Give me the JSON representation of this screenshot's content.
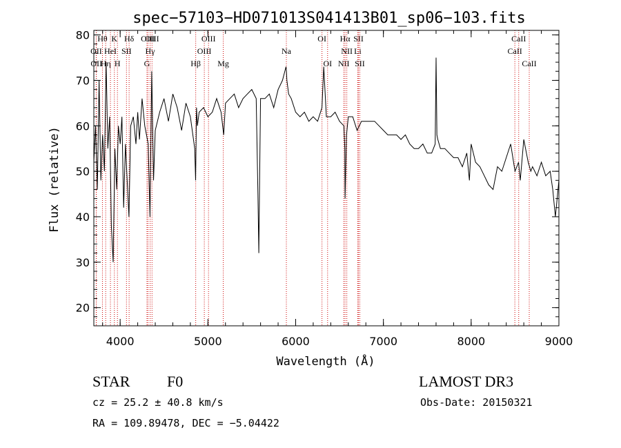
{
  "chart_data": {
    "type": "line",
    "title": "spec−57103−HD071013S041413B01_sp06−103.fits",
    "xlabel": "Wavelength (Å)",
    "ylabel": "Flux (relative)",
    "xlim": [
      3700,
      9000
    ],
    "ylim": [
      16,
      81
    ],
    "xticks": [
      4000,
      5000,
      6000,
      7000,
      8000,
      9000
    ],
    "yticks": [
      20,
      30,
      40,
      50,
      60,
      70,
      80
    ],
    "line_color": "#000000",
    "marker_color": "#cc0000",
    "series": [
      {
        "name": "flux",
        "x": [
          3700,
          3720,
          3740,
          3760,
          3780,
          3800,
          3820,
          3840,
          3860,
          3880,
          3900,
          3920,
          3940,
          3960,
          3980,
          4000,
          4020,
          4040,
          4060,
          4080,
          4100,
          4120,
          4150,
          4180,
          4200,
          4220,
          4250,
          4280,
          4300,
          4320,
          4340,
          4360,
          4380,
          4400,
          4450,
          4500,
          4550,
          4600,
          4650,
          4700,
          4750,
          4800,
          4850,
          4860,
          4870,
          4880,
          4900,
          4950,
          5000,
          5050,
          5100,
          5150,
          5180,
          5200,
          5250,
          5300,
          5350,
          5400,
          5450,
          5500,
          5550,
          5570,
          5580,
          5590,
          5600,
          5650,
          5700,
          5750,
          5800,
          5850,
          5890,
          5895,
          5900,
          5920,
          5950,
          6000,
          6050,
          6100,
          6150,
          6200,
          6250,
          6300,
          6320,
          6350,
          6400,
          6450,
          6500,
          6550,
          6560,
          6563,
          6570,
          6580,
          6600,
          6650,
          6700,
          6750,
          6800,
          6850,
          6900,
          6950,
          7000,
          7050,
          7100,
          7150,
          7200,
          7250,
          7300,
          7350,
          7400,
          7450,
          7500,
          7550,
          7590,
          7600,
          7610,
          7620,
          7650,
          7700,
          7750,
          7800,
          7850,
          7900,
          7950,
          7980,
          8000,
          8050,
          8100,
          8150,
          8200,
          8250,
          8300,
          8350,
          8400,
          8450,
          8500,
          8540,
          8560,
          8600,
          8650,
          8680,
          8700,
          8750,
          8800,
          8850,
          8900,
          8930,
          8960,
          9000
        ],
        "values": [
          52,
          60,
          46,
          70,
          48,
          58,
          50,
          74,
          55,
          62,
          38,
          30,
          55,
          46,
          60,
          56,
          62,
          42,
          56,
          48,
          40,
          60,
          62,
          56,
          63,
          57,
          66,
          60,
          58,
          56,
          40,
          72,
          48,
          59,
          63,
          66,
          61,
          67,
          64,
          59,
          65,
          62,
          55,
          48,
          64,
          60,
          63,
          64,
          62,
          63,
          66,
          63,
          58,
          65,
          66,
          67,
          64,
          66,
          67,
          68,
          66,
          45,
          32,
          50,
          66,
          66,
          67,
          64,
          68,
          70,
          73,
          72,
          70,
          67,
          66,
          63,
          62,
          63,
          61,
          62,
          61,
          64,
          73,
          62,
          62,
          63,
          61,
          60,
          55,
          44,
          50,
          58,
          62,
          62,
          59,
          61,
          61,
          61,
          61,
          60,
          59,
          58,
          58,
          58,
          57,
          58,
          56,
          55,
          55,
          56,
          54,
          54,
          56,
          75,
          58,
          57,
          55,
          55,
          54,
          53,
          53,
          51,
          54,
          48,
          56,
          52,
          51,
          49,
          47,
          46,
          51,
          50,
          53,
          56,
          50,
          52,
          48,
          57,
          52,
          50,
          51,
          49,
          52,
          49,
          50,
          46,
          40,
          48
        ]
      }
    ],
    "line_markers": [
      {
        "name": "OII",
        "x": 3727,
        "row": 2
      },
      {
        "name": "OII",
        "x": 3729,
        "row": 3
      },
      {
        "name": "Hθ",
        "x": 3798,
        "row": 1
      },
      {
        "name": "Hη",
        "x": 3835,
        "row": 3
      },
      {
        "name": "HeI",
        "x": 3889,
        "row": 2
      },
      {
        "name": "K",
        "x": 3934,
        "row": 1
      },
      {
        "name": "H",
        "x": 3969,
        "row": 3
      },
      {
        "name": "SII",
        "x": 4072,
        "row": 2
      },
      {
        "name": "Hδ",
        "x": 4102,
        "row": 1
      },
      {
        "name": "G",
        "x": 4305,
        "row": 3
      },
      {
        "name": "OIII",
        "x": 4317,
        "row": 1
      },
      {
        "name": "Hγ",
        "x": 4341,
        "row": 2
      },
      {
        "name": "OIII",
        "x": 4363,
        "row": 1
      },
      {
        "name": "Hβ",
        "x": 4861,
        "row": 3
      },
      {
        "name": "OIII",
        "x": 4959,
        "row": 2
      },
      {
        "name": "OIII",
        "x": 5007,
        "row": 1
      },
      {
        "name": "Mg",
        "x": 5175,
        "row": 3
      },
      {
        "name": "Na",
        "x": 5894,
        "row": 2
      },
      {
        "name": "OI",
        "x": 6300,
        "row": 1
      },
      {
        "name": "OI",
        "x": 6364,
        "row": 3
      },
      {
        "name": "NII",
        "x": 6548,
        "row": 3
      },
      {
        "name": "Hα",
        "x": 6563,
        "row": 1
      },
      {
        "name": "NII",
        "x": 6583,
        "row": 2
      },
      {
        "name": "Li",
        "x": 6707,
        "row": 2
      },
      {
        "name": "SII",
        "x": 6716,
        "row": 1
      },
      {
        "name": "SII",
        "x": 6731,
        "row": 3
      },
      {
        "name": "CaII",
        "x": 8498,
        "row": 2
      },
      {
        "name": "CaII",
        "x": 8542,
        "row": 1
      },
      {
        "name": "CaII",
        "x": 8662,
        "row": 3
      }
    ]
  },
  "info": {
    "object_class": "STAR",
    "subclass": "F0",
    "survey": "LAMOST DR3",
    "redshift": "cz = 25.2 ± 40.8 km/s",
    "obs_date": "Obs-Date: 20150321",
    "coords": "RA = 109.89478, DEC =  −5.04422"
  }
}
